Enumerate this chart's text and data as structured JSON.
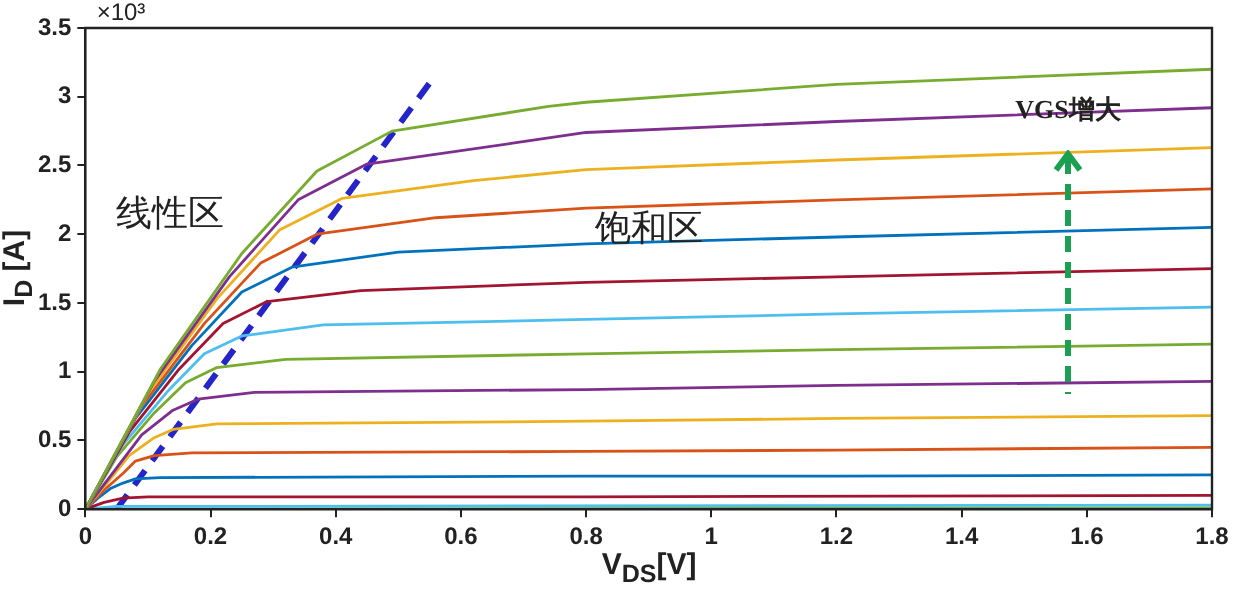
{
  "chart_data": {
    "type": "line",
    "xlabel": "V$_{DS}$[V]",
    "ylabel": "I$_{D}$ [A]",
    "xlim": [
      0,
      1.8
    ],
    "xticks": [
      0,
      0.2,
      0.4,
      0.6,
      0.8,
      1,
      1.2,
      1.4,
      1.6,
      1.8
    ],
    "ylim": [
      0,
      3.5
    ],
    "yticks": [
      0,
      0.5,
      1,
      1.5,
      2,
      2.5,
      3,
      3.5
    ],
    "grid": false,
    "legend": false,
    "marker": "none",
    "line_style": "solid",
    "annotations": [
      "×10³",
      "线性区",
      "饱和区",
      {
        "text": "VGS增大",
        "x": 1.57,
        "y": 2.6
      }
    ],
    "series": [
      {
        "color": "#77ac30",
        "x": [
          0,
          0.12,
          0.25,
          0.37,
          0.49,
          0.74,
          0.8,
          1.2,
          1.8
        ],
        "values": [
          0,
          1.02,
          1.86,
          2.46,
          2.75,
          2.93,
          2.96,
          3.09,
          3.2
        ]
      },
      {
        "color": "#7e2f8e",
        "x": [
          0,
          0.11,
          0.23,
          0.34,
          0.45,
          0.68,
          0.8,
          1.2,
          1.8
        ],
        "values": [
          0,
          0.93,
          1.69,
          2.25,
          2.51,
          2.66,
          2.74,
          2.82,
          2.92
        ]
      },
      {
        "color": "#edb120",
        "x": [
          0,
          0.1,
          0.21,
          0.31,
          0.41,
          0.62,
          0.8,
          1.2,
          1.8
        ],
        "values": [
          0,
          0.84,
          1.53,
          2.03,
          2.26,
          2.39,
          2.47,
          2.54,
          2.63
        ]
      },
      {
        "color": "#d95319",
        "x": [
          0,
          0.09,
          0.19,
          0.28,
          0.37,
          0.56,
          0.8,
          1.2,
          1.8
        ],
        "values": [
          0,
          0.75,
          1.35,
          1.79,
          2.0,
          2.12,
          2.19,
          2.25,
          2.33
        ]
      },
      {
        "color": "#0072bd",
        "x": [
          0,
          0.08,
          0.17,
          0.25,
          0.33,
          0.5,
          0.8,
          1.2,
          1.8
        ],
        "values": [
          0,
          0.66,
          1.19,
          1.58,
          1.76,
          1.87,
          1.93,
          1.98,
          2.05
        ]
      },
      {
        "color": "#a2142f",
        "x": [
          0,
          0.07,
          0.15,
          0.22,
          0.29,
          0.44,
          0.8,
          1.2,
          1.8
        ],
        "values": [
          0,
          0.56,
          1.02,
          1.35,
          1.51,
          1.59,
          1.65,
          1.69,
          1.75
        ]
      },
      {
        "color": "#4dbeee",
        "x": [
          0,
          0.06,
          0.13,
          0.19,
          0.25,
          0.38,
          0.8,
          1.2,
          1.8
        ],
        "values": [
          0,
          0.47,
          0.85,
          1.13,
          1.26,
          1.34,
          1.38,
          1.42,
          1.47
        ]
      },
      {
        "color": "#77ac30",
        "x": [
          0,
          0.05,
          0.11,
          0.16,
          0.21,
          0.32,
          0.8,
          1.2,
          1.8
        ],
        "values": [
          0,
          0.38,
          0.7,
          0.92,
          1.03,
          1.09,
          1.13,
          1.16,
          1.2
        ]
      },
      {
        "color": "#7e2f8e",
        "x": [
          0,
          0.05,
          0.09,
          0.14,
          0.18,
          0.27,
          0.8,
          1.2,
          1.8
        ],
        "values": [
          0,
          0.3,
          0.54,
          0.72,
          0.8,
          0.85,
          0.87,
          0.9,
          0.93
        ]
      },
      {
        "color": "#edb120",
        "x": [
          0,
          0.04,
          0.07,
          0.11,
          0.14,
          0.21,
          0.8,
          1.2,
          1.8
        ],
        "values": [
          0,
          0.22,
          0.39,
          0.52,
          0.58,
          0.62,
          0.64,
          0.66,
          0.68
        ]
      },
      {
        "color": "#d95319",
        "x": [
          0,
          0.03,
          0.06,
          0.08,
          0.11,
          0.17,
          0.8,
          1.2,
          1.8
        ],
        "values": [
          0,
          0.14,
          0.26,
          0.35,
          0.39,
          0.41,
          0.42,
          0.43,
          0.45
        ]
      },
      {
        "color": "#0072bd",
        "x": [
          0,
          0.02,
          0.04,
          0.06,
          0.08,
          0.12,
          0.8,
          1.2,
          1.8
        ],
        "values": [
          0,
          0.08,
          0.15,
          0.19,
          0.22,
          0.23,
          0.24,
          0.24,
          0.25
        ]
      },
      {
        "color": "#a2142f",
        "x": [
          0,
          0.03,
          0.06,
          0.1,
          0.8,
          1.8
        ],
        "values": [
          0,
          0.05,
          0.08,
          0.09,
          0.09,
          0.1
        ]
      },
      {
        "color": "#4dbeee",
        "x": [
          0,
          0.05,
          1.8
        ],
        "values": [
          0,
          0.02,
          0.03
        ]
      },
      {
        "color": "#77ac30",
        "x": [
          0,
          1.8
        ],
        "values": [
          0,
          0.01
        ]
      },
      {
        "color": "#2424c8",
        "line_style": "dashed",
        "x": [
          0.05,
          0.55
        ],
        "values": [
          0,
          3.1
        ]
      }
    ]
  }
}
